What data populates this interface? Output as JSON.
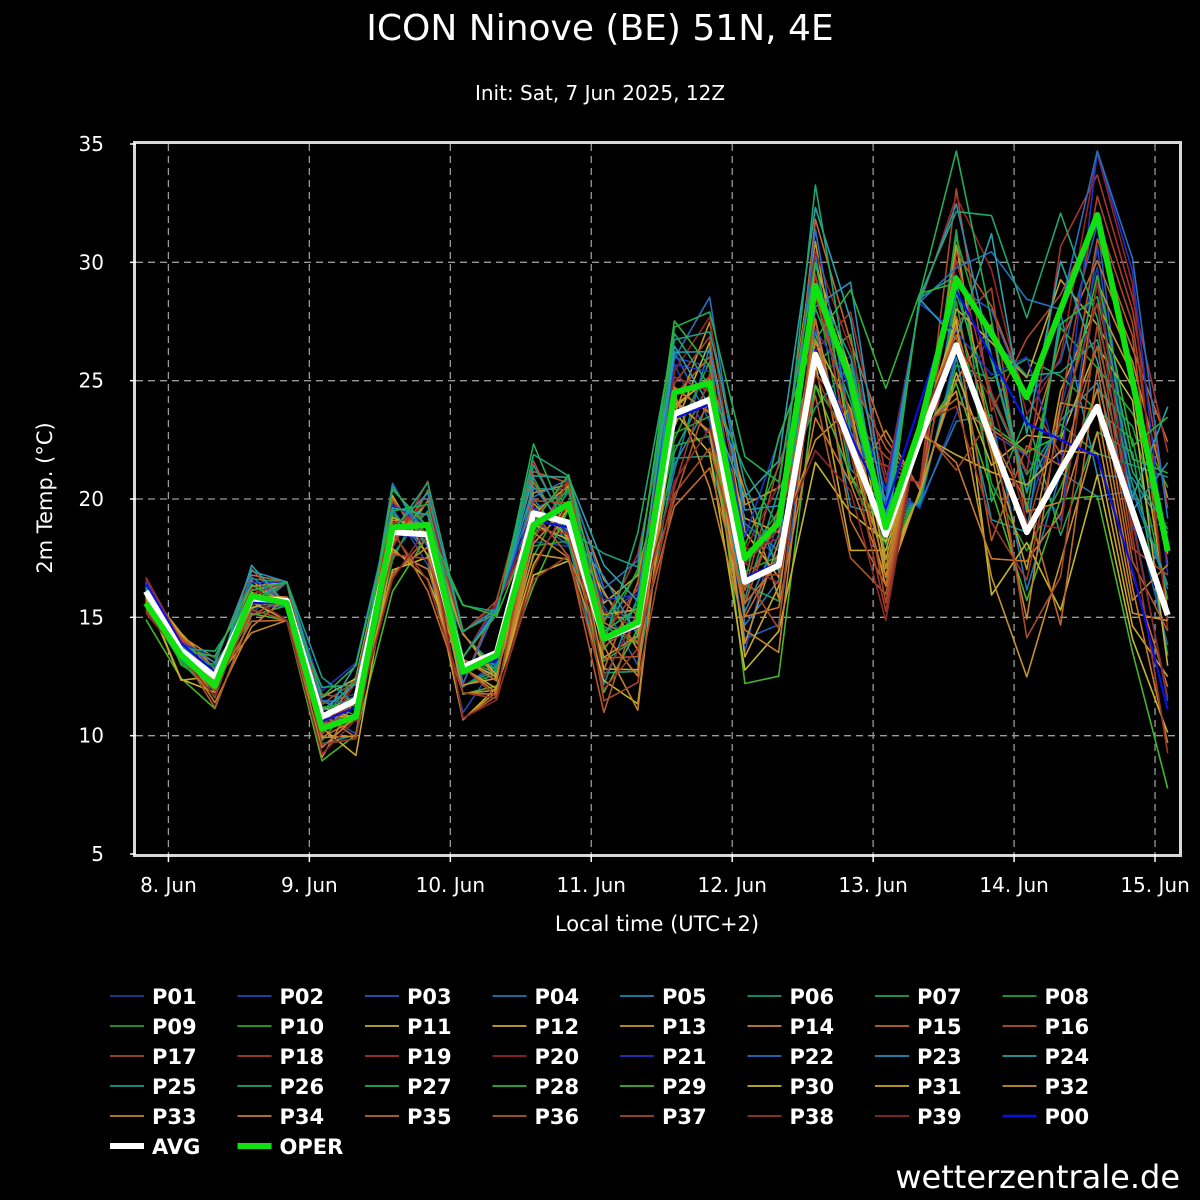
{
  "chart_data": {
    "type": "line",
    "title": "ICON Ninove (BE) 51N, 4E",
    "subtitle": "Init: Sat, 7 Jun 2025, 12Z",
    "ylabel": "2m Temp. (°C)",
    "xlabel": "Local time (UTC+2)",
    "brand": "wetterzentrale.de",
    "ylim": [
      5,
      35
    ],
    "yticks": [
      5,
      10,
      15,
      20,
      25,
      30,
      35
    ],
    "xlim": [
      -0.23,
      7.17
    ],
    "xticks": [
      {
        "pos": 0,
        "label": "8. Jun"
      },
      {
        "pos": 1,
        "label": "9. Jun"
      },
      {
        "pos": 2,
        "label": "10. Jun"
      },
      {
        "pos": 3,
        "label": "11. Jun"
      },
      {
        "pos": 4,
        "label": "12. Jun"
      },
      {
        "pos": 5,
        "label": "13. Jun"
      },
      {
        "pos": 6,
        "label": "14. Jun"
      },
      {
        "pos": 7,
        "label": "15. Jun"
      }
    ],
    "x": [
      -0.16,
      0.09,
      0.33,
      0.59,
      0.84,
      1.09,
      1.33,
      1.59,
      1.84,
      2.09,
      2.33,
      2.59,
      2.84,
      3.09,
      3.33,
      3.59,
      3.84,
      4.09,
      4.33,
      4.59,
      4.84,
      5.09,
      5.33,
      5.59,
      5.84,
      6.09,
      6.33,
      6.59,
      6.84,
      7.09
    ],
    "oper": [
      15.6,
      13.4,
      12.1,
      15.9,
      15.6,
      10.3,
      10.8,
      18.8,
      18.9,
      12.7,
      13.4,
      18.9,
      19.8,
      14.1,
      14.8,
      24.5,
      24.9,
      17.5,
      19.0,
      29.0,
      25.0,
      18.8,
      23.0,
      29.3,
      27.0,
      24.3,
      28.0,
      32.0,
      25.0,
      17.8
    ],
    "avg": [
      16.1,
      13.6,
      12.5,
      15.8,
      15.7,
      10.8,
      11.5,
      18.6,
      18.5,
      12.9,
      13.5,
      19.4,
      19.0,
      14.1,
      14.7,
      23.6,
      24.2,
      16.5,
      17.2,
      26.1,
      22.3,
      18.5,
      22.5,
      26.5,
      22.5,
      18.6,
      21.2,
      23.9,
      19.5,
      15.1
    ],
    "p00": [
      16.4,
      13.9,
      12.7,
      15.6,
      15.6,
      10.6,
      11.2,
      18.5,
      18.4,
      12.8,
      13.2,
      19.1,
      18.8,
      14.0,
      14.6,
      23.4,
      24.0,
      16.7,
      17.3,
      26.3,
      22.7,
      19.6,
      24.0,
      28.8,
      26.0,
      23.2,
      22.5,
      21.8,
      17.0,
      11.1
    ],
    "members": [
      "P01",
      "P02",
      "P03",
      "P04",
      "P05",
      "P06",
      "P07",
      "P08",
      "P09",
      "P10",
      "P11",
      "P12",
      "P13",
      "P14",
      "P15",
      "P16",
      "P17",
      "P18",
      "P19",
      "P20",
      "P21",
      "P22",
      "P23",
      "P24",
      "P25",
      "P26",
      "P27",
      "P28",
      "P29",
      "P30",
      "P31",
      "P32",
      "P33",
      "P34",
      "P35",
      "P36",
      "P37",
      "P38",
      "P39"
    ],
    "member_colors": [
      "#1c3d9c",
      "#1f4bb3",
      "#1e5eb6",
      "#1f78b4",
      "#1a8cad",
      "#189a77",
      "#1fa35b",
      "#1ea53f",
      "#249b32",
      "#2aa82a",
      "#bfb23a",
      "#c8a82c",
      "#c9982a",
      "#c98431",
      "#bf6a2c",
      "#b4562a",
      "#a8492a",
      "#a8402a",
      "#a83232",
      "#952626",
      "#2233c4",
      "#2a6ec2",
      "#2a8fb8",
      "#2aa0a6",
      "#1c9c87",
      "#1ea670",
      "#22ad55",
      "#2cb438",
      "#43b52a",
      "#c4b52e",
      "#c9a62c",
      "#c4922c",
      "#c4842c",
      "#c77a2c",
      "#bf6a2c",
      "#b25a2a",
      "#a84a2a",
      "#9c3a2a",
      "#8c2a2a"
    ],
    "labels": {
      "avg": "AVG",
      "oper": "OPER",
      "p00": "P00"
    },
    "colors": {
      "avg": "#ffffff",
      "oper": "#11e011",
      "p00": "#0a10e0",
      "grid": "#9a9a9a",
      "frame": "#d8d8d8"
    },
    "grid": true,
    "legend_position": "bottom"
  }
}
